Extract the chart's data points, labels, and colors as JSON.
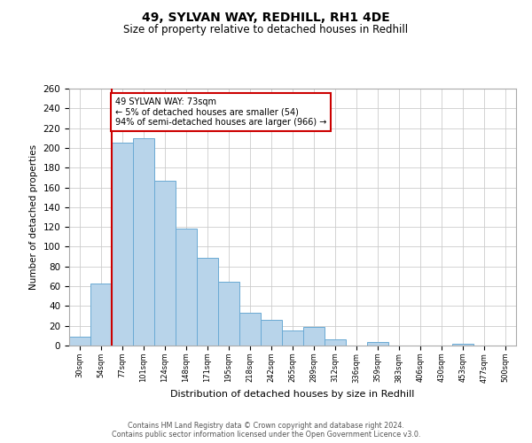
{
  "title": "49, SYLVAN WAY, REDHILL, RH1 4DE",
  "subtitle": "Size of property relative to detached houses in Redhill",
  "xlabel": "Distribution of detached houses by size in Redhill",
  "ylabel": "Number of detached properties",
  "bin_labels": [
    "30sqm",
    "54sqm",
    "77sqm",
    "101sqm",
    "124sqm",
    "148sqm",
    "171sqm",
    "195sqm",
    "218sqm",
    "242sqm",
    "265sqm",
    "289sqm",
    "312sqm",
    "336sqm",
    "359sqm",
    "383sqm",
    "406sqm",
    "430sqm",
    "453sqm",
    "477sqm",
    "500sqm"
  ],
  "bar_heights": [
    9,
    63,
    205,
    210,
    167,
    118,
    89,
    65,
    33,
    26,
    15,
    19,
    6,
    0,
    4,
    0,
    0,
    0,
    2,
    0,
    0
  ],
  "bar_color": "#b8d4ea",
  "bar_edge_color": "#6aaad4",
  "property_line_color": "#cc0000",
  "annotation_text": "49 SYLVAN WAY: 73sqm\n← 5% of detached houses are smaller (54)\n94% of semi-detached houses are larger (966) →",
  "annotation_box_color": "#ffffff",
  "annotation_box_edge_color": "#cc0000",
  "ylim": [
    0,
    260
  ],
  "yticks": [
    0,
    20,
    40,
    60,
    80,
    100,
    120,
    140,
    160,
    180,
    200,
    220,
    240,
    260
  ],
  "footer_line1": "Contains HM Land Registry data © Crown copyright and database right 2024.",
  "footer_line2": "Contains public sector information licensed under the Open Government Licence v3.0.",
  "background_color": "#ffffff",
  "grid_color": "#cccccc",
  "title_fontsize": 10,
  "subtitle_fontsize": 8.5
}
